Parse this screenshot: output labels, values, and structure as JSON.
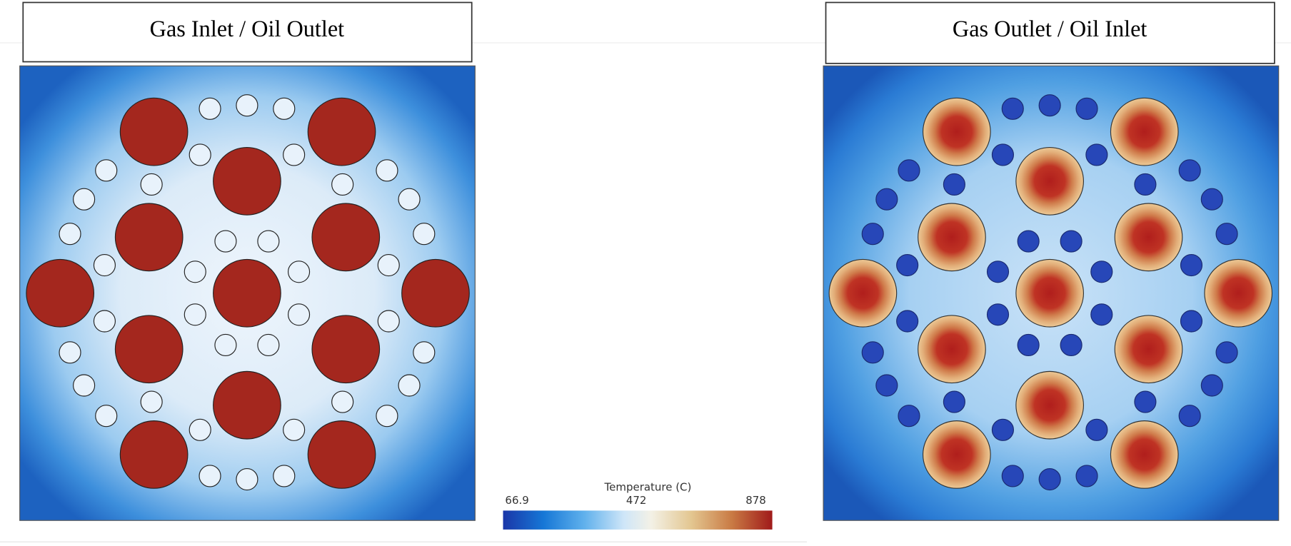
{
  "panels": [
    {
      "title": "Gas Inlet / Oil Outlet"
    },
    {
      "title": "Gas Outlet / Oil Inlet"
    }
  ],
  "colorbar": {
    "title": "Temperature (C)",
    "ticks": [
      66.9,
      472,
      878
    ]
  }
}
